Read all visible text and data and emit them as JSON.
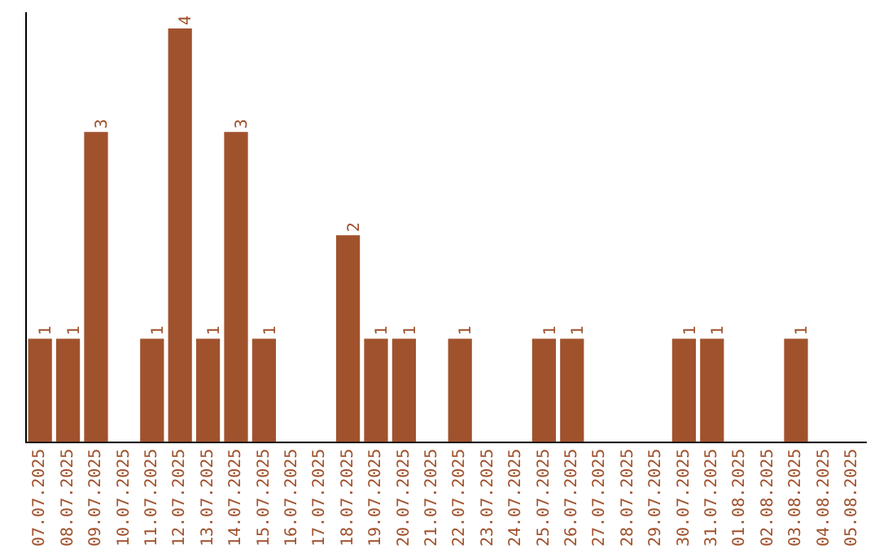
{
  "chart_data": {
    "type": "bar",
    "categories": [
      "07.07.2025",
      "08.07.2025",
      "09.07.2025",
      "10.07.2025",
      "11.07.2025",
      "12.07.2025",
      "13.07.2025",
      "14.07.2025",
      "15.07.2025",
      "16.07.2025",
      "17.07.2025",
      "18.07.2025",
      "19.07.2025",
      "20.07.2025",
      "21.07.2025",
      "22.07.2025",
      "23.07.2025",
      "24.07.2025",
      "25.07.2025",
      "26.07.2025",
      "27.07.2025",
      "28.07.2025",
      "29.07.2025",
      "30.07.2025",
      "31.07.2025",
      "01.08.2025",
      "02.08.2025",
      "03.08.2025",
      "04.08.2025",
      "05.08.2025"
    ],
    "values": [
      1,
      1,
      3,
      0,
      1,
      4,
      1,
      3,
      1,
      0,
      0,
      2,
      1,
      1,
      0,
      1,
      0,
      0,
      1,
      1,
      0,
      0,
      0,
      1,
      1,
      0,
      0,
      1,
      0,
      0
    ],
    "value_labels": [
      "1",
      "1",
      "3",
      null,
      "1",
      "4",
      "1",
      "3",
      "1",
      null,
      null,
      "2",
      "1",
      "1",
      null,
      "1",
      null,
      null,
      "1",
      "1",
      null,
      null,
      null,
      "1",
      "1",
      null,
      null,
      "1",
      null,
      null
    ],
    "color": "#a0522d",
    "ylim": [
      0,
      4.15
    ],
    "grid": false,
    "legend": false
  }
}
